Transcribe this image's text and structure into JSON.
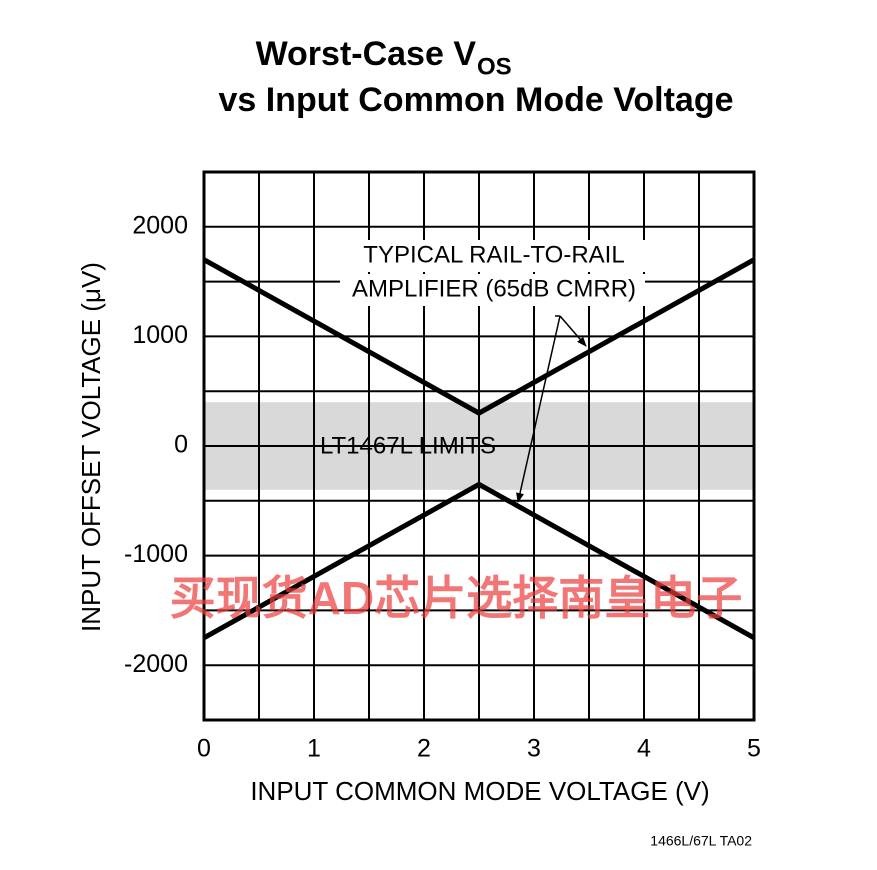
{
  "chart_data": {
    "type": "line",
    "title": {
      "main": "Worst-Case V",
      "subscript": "OS",
      "line2": "vs Input Common Mode Voltage"
    },
    "x_label": "INPUT COMMON MODE VOLTAGE (V)",
    "y_label": "INPUT OFFSET VOLTAGE (μV)",
    "x": [
      0,
      2.5,
      5
    ],
    "series": [
      {
        "color": "#000000",
        "values": [
          1700,
          300,
          1700
        ]
      },
      {
        "color": "#000000",
        "values": [
          -1750,
          -350,
          -1750
        ]
      }
    ],
    "band": {
      "label": "LT1467L LIMITS",
      "range": [
        -400,
        400
      ],
      "color": "#d9d9d9"
    },
    "annotation": [
      "TYPICAL RAIL-TO-RAIL",
      "AMPLIFIER (65dB CMRR)"
    ],
    "xlim": [
      0,
      5
    ],
    "xticks": [
      0,
      1,
      2,
      3,
      4,
      5
    ],
    "ylim": [
      -2500,
      2500
    ],
    "yticks": [
      -2000,
      -1000,
      0,
      1000,
      2000
    ],
    "grid": true,
    "footnote": "1466L/67L TA02",
    "watermark": "买现货AD芯片选择南皇电子"
  }
}
